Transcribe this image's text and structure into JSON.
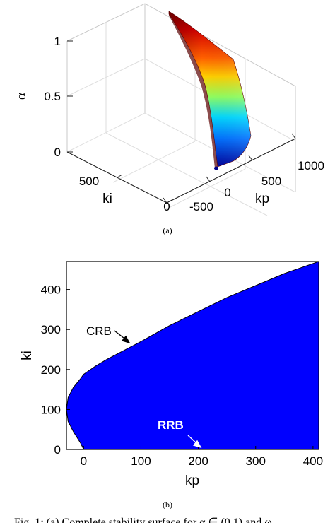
{
  "chart_data": [
    {
      "type": "surface",
      "subfigure_label": "(a)",
      "axes": {
        "x": "kp",
        "y": "ki",
        "z": "α"
      },
      "x_ticks": [
        "-500",
        "0",
        "500",
        "1000"
      ],
      "y_ticks": [
        "0",
        "500"
      ],
      "z_ticks": [
        "0",
        "0.5",
        "1"
      ],
      "zlim": [
        0,
        1
      ],
      "grid": true,
      "colormap": "jet"
    },
    {
      "type": "area",
      "subfigure_label": "(b)",
      "xlabel": "kp",
      "ylabel": "ki",
      "xlim": [
        -30,
        410
      ],
      "ylim": [
        0,
        470
      ],
      "x_ticks": [
        "0",
        "100",
        "200",
        "300",
        "400"
      ],
      "y_ticks": [
        "0",
        "100",
        "200",
        "300",
        "400"
      ],
      "fill_color": "#0000ff",
      "annotations": [
        {
          "text": "CRB",
          "color": "#000000",
          "arrow_to": [
            80,
            335
          ]
        },
        {
          "text": "RRB",
          "color": "#ffffff",
          "arrow_to": [
            205,
            0
          ]
        }
      ],
      "boundary": {
        "x": [
          -30,
          -27,
          -18,
          -5,
          0,
          10,
          20,
          40,
          60,
          80,
          100,
          150,
          200,
          250,
          300,
          350,
          400,
          410
        ],
        "y_upper": [
          100,
          130,
          155,
          178,
          188,
          198,
          208,
          225,
          240,
          255,
          270,
          310,
          345,
          380,
          410,
          440,
          465,
          470
        ],
        "y_lower": [
          100,
          70,
          45,
          15,
          0,
          0,
          0,
          0,
          0,
          0,
          0,
          0,
          0,
          0,
          0,
          0,
          0,
          0
        ]
      }
    }
  ],
  "caption_text": "Fig. 1: (a) Complete stability surface for α ∈ (0,1) and ω"
}
